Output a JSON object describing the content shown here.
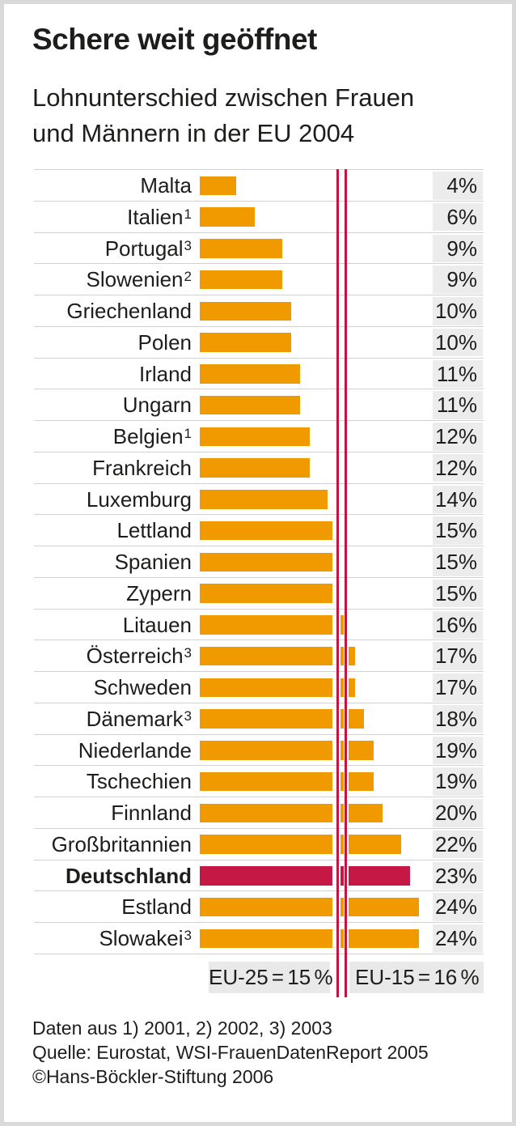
{
  "header": {
    "title": "Schere weit geöffnet",
    "subtitle_lines": [
      "Lohnunterschied zwischen Frauen",
      "und Männern in der EU 2004"
    ]
  },
  "chart_data": {
    "type": "bar",
    "orientation": "horizontal",
    "title": "Schere weit geöffnet",
    "subtitle": "Lohnunterschied zwischen Frauen und Männern in der EU 2004",
    "unit": "%",
    "xlim": [
      0,
      26
    ],
    "grid": false,
    "categories": [
      "Malta",
      "Italien",
      "Portugal",
      "Slowenien",
      "Griechenland",
      "Polen",
      "Irland",
      "Ungarn",
      "Belgien",
      "Frankreich",
      "Luxemburg",
      "Lettland",
      "Spanien",
      "Zypern",
      "Litauen",
      "Österreich",
      "Schweden",
      "Dänemark",
      "Niederlande",
      "Tschechien",
      "Finnland",
      "Großbritannien",
      "Deutschland",
      "Estland",
      "Slowakei"
    ],
    "footnote_marks": [
      "",
      "1",
      "3",
      "2",
      "",
      "",
      "",
      "",
      "1",
      "",
      "",
      "",
      "",
      "",
      "",
      "3",
      "",
      "3",
      "",
      "",
      "",
      "",
      "",
      "",
      "3"
    ],
    "values": [
      4,
      6,
      9,
      9,
      10,
      10,
      11,
      11,
      12,
      12,
      14,
      15,
      15,
      15,
      16,
      17,
      17,
      18,
      19,
      19,
      20,
      22,
      23,
      24,
      24
    ],
    "value_labels": [
      "4%",
      "6%",
      "9%",
      "9%",
      "10%",
      "10%",
      "11%",
      "11%",
      "12%",
      "12%",
      "14%",
      "15%",
      "15%",
      "15%",
      "16%",
      "17%",
      "17%",
      "18%",
      "19%",
      "19%",
      "20%",
      "22%",
      "23%",
      "24%",
      "24%"
    ],
    "highlight_category": "Deutschland",
    "reference_lines": [
      {
        "label": "EU-25 = 15 %",
        "value": 15
      },
      {
        "label": "EU-15 = 16 %",
        "value": 16
      }
    ],
    "colors": {
      "bar": "#f09a00",
      "highlight": "#c51845",
      "reference_line": "#c41441",
      "value_cell_bg": "#ececec",
      "eu_label_bg": "#e9e9e9"
    }
  },
  "footer": {
    "line1": "Daten aus 1) 2001, 2) 2002, 3) 2003",
    "line2": "Quelle: Eurostat, WSI-FrauenDatenReport 2005",
    "line3": "©Hans-Böckler-Stiftung 2006"
  }
}
